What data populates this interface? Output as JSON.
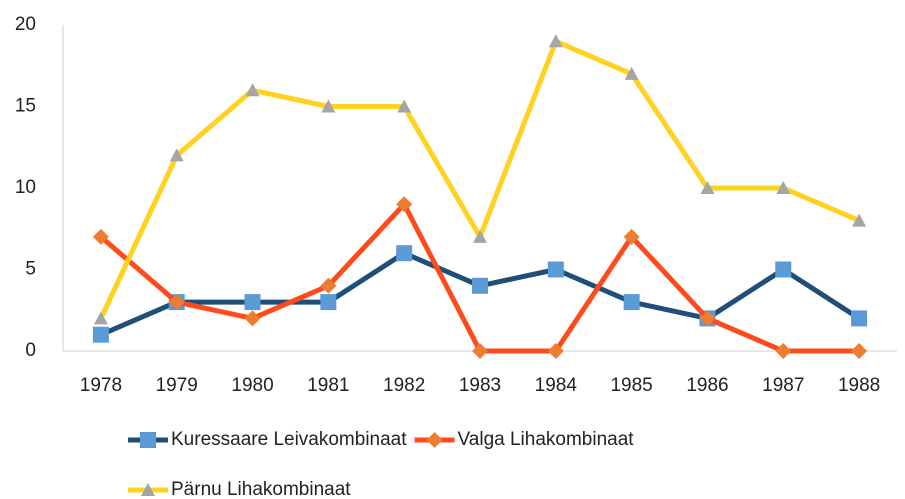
{
  "chart_data": {
    "type": "line",
    "categories": [
      "1978",
      "1979",
      "1980",
      "1981",
      "1982",
      "1983",
      "1984",
      "1985",
      "1986",
      "1987",
      "1988"
    ],
    "series": [
      {
        "name": "Kuressaare Leivakombinaat",
        "color": "#1f4e79",
        "marker_color": "#5b9bd5",
        "marker": "square",
        "values": [
          1,
          3,
          3,
          3,
          6,
          4,
          5,
          3,
          2,
          5,
          2
        ]
      },
      {
        "name": "Valga Lihakombinaat",
        "color": "#ff4a1c",
        "marker_color": "#ed7d31",
        "marker": "diamond",
        "values": [
          7,
          3,
          2,
          4,
          9,
          0,
          0,
          7,
          2,
          0,
          0
        ]
      },
      {
        "name": "Pärnu Lihakombinaat",
        "color": "#ffd21f",
        "marker_color": "#a5a5a5",
        "marker": "triangle",
        "values": [
          2,
          12,
          16,
          15,
          15,
          7,
          19,
          17,
          10,
          10,
          8
        ]
      }
    ],
    "ylim": [
      0,
      20
    ],
    "yticks": [
      0,
      5,
      10,
      15,
      20
    ],
    "grid": false,
    "legend": "bottom"
  }
}
